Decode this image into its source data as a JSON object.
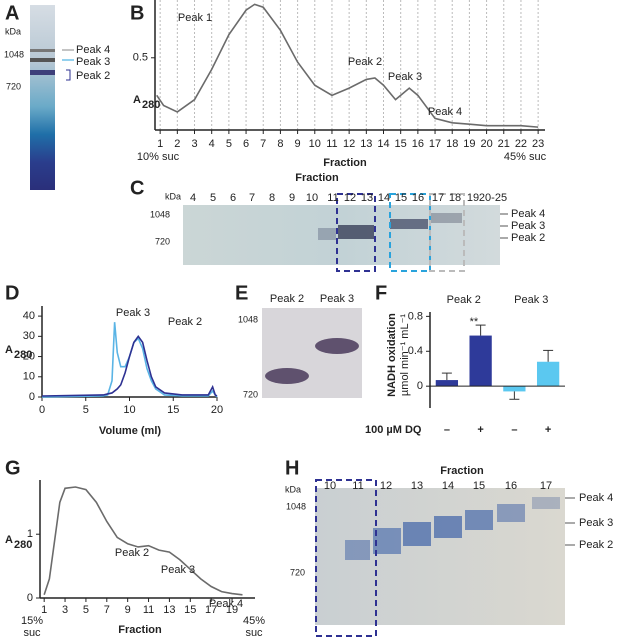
{
  "panels": {
    "A": {
      "label": "A",
      "kda": "kDa",
      "markers": [
        "1048",
        "720"
      ],
      "bands": [
        "Peak 4",
        "Peak 3",
        "Peak 2"
      ]
    },
    "C": {
      "label": "C",
      "title": "Fraction",
      "kda": "kDa",
      "lanes": [
        "4",
        "5",
        "6",
        "7",
        "8",
        "9",
        "10",
        "11",
        "12",
        "13",
        "14",
        "15",
        "16",
        "17",
        "18",
        "19",
        "20-25"
      ],
      "markers": [
        "1048",
        "720"
      ],
      "bands": [
        "Peak 4",
        "Peak 3",
        "Peak 2"
      ]
    },
    "E": {
      "label": "E",
      "lanes": [
        "Peak 2",
        "Peak 3"
      ],
      "markers": [
        "1048",
        "720"
      ]
    },
    "H": {
      "label": "H",
      "title": "Fraction",
      "kda": "kDa",
      "lanes": [
        "10",
        "11",
        "12",
        "13",
        "14",
        "15",
        "16",
        "17"
      ],
      "markers": [
        "1048",
        "720"
      ],
      "bands": [
        "Peak 4",
        "Peak 3",
        "Peak 2"
      ]
    }
  },
  "chart_data": [
    {
      "type": "line",
      "panel": "B",
      "x_label": "Fraction",
      "y_label": "A",
      "y_label_sub": "280",
      "x": [
        0.8,
        1.2,
        2,
        3,
        4,
        5,
        6,
        6.5,
        7,
        8,
        9,
        10,
        11,
        12,
        13,
        13.5,
        14,
        14.7,
        15.5,
        16,
        17,
        18,
        19,
        20,
        21,
        22,
        23
      ],
      "series": [
        {
          "color": "#6b6b6b",
          "values": [
            0.24,
            0.17,
            0.125,
            0.21,
            0.42,
            0.66,
            0.83,
            0.87,
            0.85,
            0.69,
            0.47,
            0.31,
            0.24,
            0.29,
            0.35,
            0.36,
            0.31,
            0.21,
            0.29,
            0.24,
            0.08,
            0.05,
            0.04,
            0.03,
            0.03,
            0.03,
            0.02
          ]
        }
      ],
      "xlim": [
        0.7,
        23.4
      ],
      "ylim": [
        0,
        0.9
      ],
      "xticks": [
        1,
        2,
        3,
        4,
        5,
        6,
        7,
        8,
        9,
        10,
        11,
        12,
        13,
        14,
        15,
        16,
        17,
        18,
        19,
        20,
        21,
        22,
        23
      ],
      "yticks": [
        0.5
      ],
      "grid": true,
      "annotations": [
        {
          "text": "Peak 1",
          "color": "#111111"
        },
        {
          "text": "Peak 2",
          "color": "#2e3192"
        },
        {
          "text": "Peak 3",
          "color": "#29a3dc"
        },
        {
          "text": "Peak 4",
          "color": "#9a9a9a"
        },
        {
          "text": "10% suc",
          "color": "#111111"
        },
        {
          "text": "45% suc",
          "color": "#111111"
        }
      ]
    },
    {
      "type": "line",
      "panel": "D",
      "x_label": "Volume (ml)",
      "y_label": "A",
      "y_label_sub": "280",
      "x": [
        0,
        7,
        7.5,
        8,
        8.3,
        8.6,
        9,
        9.5,
        10,
        10.5,
        11,
        11.5,
        12,
        12.5,
        13,
        14,
        16,
        19,
        19.5,
        19.8,
        20
      ],
      "series": [
        {
          "name": "Peak 3",
          "color": "#5ab4e5",
          "values": [
            0,
            0.5,
            1,
            8,
            37,
            22,
            15,
            15,
            20,
            27,
            29,
            24,
            14,
            8,
            4,
            1,
            0.5,
            0.5,
            3,
            1,
            0
          ]
        },
        {
          "name": "Peak 2",
          "color": "#2e3192",
          "values": [
            0.5,
            1,
            1.5,
            2,
            3,
            4,
            6,
            12,
            20,
            27,
            30,
            27,
            18,
            10,
            5,
            2,
            1,
            1,
            5,
            1,
            0.5
          ]
        }
      ],
      "xlim": [
        0,
        20
      ],
      "ylim": [
        0,
        45
      ],
      "xticks": [
        0,
        5,
        10,
        15,
        20
      ],
      "yticks": [
        0,
        10,
        20,
        30,
        40
      ],
      "grid": false
    },
    {
      "type": "bar",
      "panel": "F",
      "x_label": "100 µM DQ",
      "y_label": "NADH oxidation",
      "y_label_2": "µmol min⁻¹ mL⁻¹",
      "categories": [
        "–",
        "+",
        "–",
        "+"
      ],
      "values": [
        0.07,
        0.58,
        -0.06,
        0.28
      ],
      "errors": [
        0.08,
        0.12,
        0.09,
        0.13
      ],
      "colors": [
        "#2e3a9a",
        "#2e3a9a",
        "#5bc8f0",
        "#5bc8f0"
      ],
      "group_labels": [
        {
          "text": "Peak 2",
          "color": "#2e3192"
        },
        {
          "text": "Peak 3",
          "color": "#29a3dc"
        }
      ],
      "annotation": "**",
      "ylim": [
        -0.25,
        0.85
      ],
      "yticks": [
        0,
        0.4,
        0.8
      ],
      "grid": false
    },
    {
      "type": "line",
      "panel": "G",
      "x_label": "Fraction",
      "y_label": "A",
      "y_label_sub": "280",
      "x": [
        1,
        1.5,
        2,
        2.5,
        3,
        4,
        5,
        6,
        7,
        8,
        9,
        10,
        11,
        12,
        13,
        14,
        15,
        16,
        17,
        18,
        19,
        20
      ],
      "series": [
        {
          "color": "#6b6b6b",
          "values": [
            0.05,
            0.3,
            0.9,
            1.5,
            1.72,
            1.74,
            1.7,
            1.5,
            1.2,
            0.95,
            0.85,
            0.8,
            0.82,
            0.75,
            0.72,
            0.6,
            0.45,
            0.3,
            0.18,
            0.1,
            0.07,
            0.05
          ]
        }
      ],
      "xlim": [
        0.6,
        21.2
      ],
      "ylim": [
        0,
        1.85
      ],
      "xticks": [
        1,
        3,
        5,
        7,
        9,
        11,
        13,
        15,
        17,
        19
      ],
      "yticks": [
        0,
        1
      ],
      "grid": false,
      "annotations": [
        {
          "text": "Peak 2",
          "color": "#2e3192"
        },
        {
          "text": "Peak 3",
          "color": "#29a3dc"
        },
        {
          "text": "Peak 4",
          "color": "#9a9a9a"
        },
        {
          "text": "15%",
          "color": "#111111"
        },
        {
          "text": "suc",
          "color": "#111111"
        },
        {
          "text": "45%",
          "color": "#111111"
        },
        {
          "text": "suc",
          "color": "#111111"
        }
      ]
    }
  ]
}
